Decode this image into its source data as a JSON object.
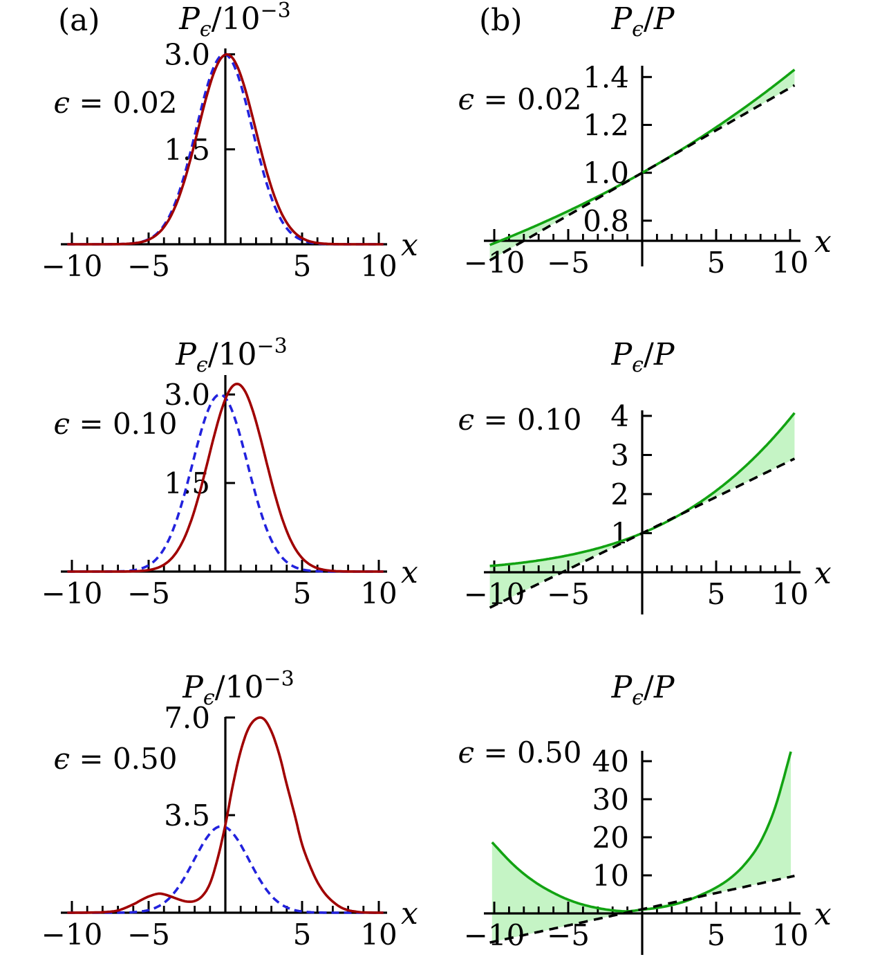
{
  "figure": {
    "panel_labels": {
      "a": "(a)",
      "b": "(b)"
    },
    "colors": {
      "red": "#a00000",
      "blue": "#2222dd",
      "green": "#12a312",
      "green_fill": "#c5f4c5",
      "axis": "#000000",
      "background": "#ffffff"
    }
  },
  "chart_data": [
    {
      "id": "a1",
      "type": "line",
      "row": 1,
      "column": "a",
      "title": "Pϵ/10⁻³",
      "title_parts": [
        {
          "t": "P",
          "s": "i"
        },
        {
          "t": "ϵ",
          "s": "sub"
        },
        {
          "t": "/10",
          "s": "u"
        },
        {
          "t": "−3",
          "s": "sup"
        }
      ],
      "epsilon_label": "ϵ = 0.02",
      "epsilon_parts": [
        {
          "t": "ϵ",
          "s": "i"
        },
        {
          "t": " = 0.02",
          "s": "u"
        }
      ],
      "xlabel": "x",
      "xlim": [
        -10.3,
        10.3
      ],
      "x_major_ticks": [
        -10,
        -5,
        5,
        10
      ],
      "x_major_tick_labels": [
        "−10",
        "−5",
        "5",
        "10"
      ],
      "x_minor_tick_step": 1,
      "x_axis_at_y": 0,
      "ylim": [
        0,
        3.3
      ],
      "y_ticks": [
        {
          "value": 1.5,
          "label": "1.5"
        },
        {
          "value": 3.0,
          "label": "3.0"
        }
      ],
      "series": [
        {
          "name": "P reference (blue dashed)",
          "color": "blue",
          "line": "dashed",
          "model": "gaussian",
          "gaussians": [
            {
              "A": 3.0,
              "mu": -0.07,
              "sigma": 1.83
            }
          ]
        },
        {
          "name": "Pϵ (red solid)",
          "color": "red",
          "line": "solid",
          "model": "gaussian",
          "gaussians": [
            {
              "A": 3.0,
              "mu": 0.1,
              "sigma": 1.87
            }
          ]
        }
      ]
    },
    {
      "id": "b1",
      "type": "line",
      "row": 1,
      "column": "b",
      "title": "Pϵ/P",
      "title_parts": [
        {
          "t": "P",
          "s": "i"
        },
        {
          "t": "ϵ",
          "s": "sub"
        },
        {
          "t": "/",
          "s": "u"
        },
        {
          "t": "P",
          "s": "i"
        }
      ],
      "epsilon_label": "ϵ = 0.02",
      "epsilon_parts": [
        {
          "t": "ϵ",
          "s": "i"
        },
        {
          "t": " = 0.02",
          "s": "u"
        }
      ],
      "xlabel": "x",
      "xlim": [
        -10.3,
        10.3
      ],
      "x_major_ticks": [
        -10,
        -5,
        5,
        10
      ],
      "x_major_tick_labels": [
        "−10",
        "−5",
        "5",
        "10"
      ],
      "x_minor_tick_step": 1,
      "x_axis_at_y": 0.716,
      "ylim": [
        0.716,
        1.45
      ],
      "y_ticks": [
        {
          "value": 0.8,
          "label": "0.8"
        },
        {
          "value": 1.0,
          "label": "1.0"
        },
        {
          "value": 1.2,
          "label": "1.2"
        },
        {
          "value": 1.4,
          "label": "1.4"
        }
      ],
      "fill_between": {
        "upper": 0,
        "lower": 1,
        "color": "green_fill"
      },
      "series": [
        {
          "name": "Pϵ/P exact (green solid)",
          "color": "green",
          "line": "solid",
          "model": "exp_quadratic",
          "params": {
            "a": 0,
            "b": 0.0348
          }
        },
        {
          "name": "linear approximation (black dashed)",
          "color": "axis",
          "line": "dashed",
          "model": "linear",
          "params": {
            "intercept": 1,
            "slope": 0.0355
          }
        }
      ]
    },
    {
      "id": "a2",
      "type": "line",
      "row": 2,
      "column": "a",
      "title": "Pϵ/10⁻³",
      "title_parts": [
        {
          "t": "P",
          "s": "i"
        },
        {
          "t": "ϵ",
          "s": "sub"
        },
        {
          "t": "/10",
          "s": "u"
        },
        {
          "t": "−3",
          "s": "sup"
        }
      ],
      "epsilon_label": "ϵ = 0.10",
      "epsilon_parts": [
        {
          "t": "ϵ",
          "s": "i"
        },
        {
          "t": " = 0.10",
          "s": "u"
        }
      ],
      "xlabel": "x",
      "xlim": [
        -10.3,
        10.3
      ],
      "x_major_ticks": [
        -10,
        -5,
        5,
        10
      ],
      "x_major_tick_labels": [
        "−10",
        "−5",
        "5",
        "10"
      ],
      "x_minor_tick_step": 1,
      "x_axis_at_y": 0,
      "ylim": [
        0,
        3.35
      ],
      "y_ticks": [
        {
          "value": 1.5,
          "label": "1.5"
        },
        {
          "value": 3.0,
          "label": "3.0"
        }
      ],
      "series": [
        {
          "name": "P reference (blue dashed)",
          "color": "blue",
          "line": "dashed",
          "model": "gaussian",
          "gaussians": [
            {
              "A": 3.0,
              "mu": -0.35,
              "sigma": 1.8
            }
          ]
        },
        {
          "name": "Pϵ (red solid)",
          "color": "red",
          "line": "solid",
          "model": "gaussian",
          "gaussians": [
            {
              "A": 3.18,
              "mu": 0.76,
              "sigma": 1.85
            }
          ]
        }
      ]
    },
    {
      "id": "b2",
      "type": "line",
      "row": 2,
      "column": "b",
      "title": "Pϵ/P",
      "title_parts": [
        {
          "t": "P",
          "s": "i"
        },
        {
          "t": "ϵ",
          "s": "sub"
        },
        {
          "t": "/",
          "s": "u"
        },
        {
          "t": "P",
          "s": "i"
        }
      ],
      "epsilon_label": "ϵ = 0.10",
      "epsilon_parts": [
        {
          "t": "ϵ",
          "s": "i"
        },
        {
          "t": " = 0.10",
          "s": "u"
        }
      ],
      "xlabel": "x",
      "xlim": [
        -10.3,
        10.3
      ],
      "x_major_ticks": [
        -10,
        -5,
        5,
        10
      ],
      "x_major_tick_labels": [
        "−10",
        "−5",
        "5",
        "10"
      ],
      "x_minor_tick_step": 1,
      "x_axis_at_y": 0,
      "ylim": [
        -1,
        4.15
      ],
      "y_ticks": [
        {
          "value": 1,
          "label": "1"
        },
        {
          "value": 2,
          "label": "2"
        },
        {
          "value": 3,
          "label": "3"
        },
        {
          "value": 4,
          "label": "4"
        }
      ],
      "fill_between": {
        "upper": 0,
        "lower": 1,
        "color": "green_fill"
      },
      "series": [
        {
          "name": "Pϵ/P exact (green solid)",
          "color": "green",
          "line": "solid",
          "model": "exp_quadratic",
          "params": {
            "a": -0.002,
            "b": 0.157
          }
        },
        {
          "name": "linear approximation (black dashed)",
          "color": "axis",
          "line": "dashed",
          "model": "linear",
          "params": {
            "intercept": 1,
            "slope": 0.185
          }
        }
      ]
    },
    {
      "id": "a3",
      "type": "line",
      "row": 3,
      "column": "a",
      "title": "Pϵ/10⁻³",
      "title_parts": [
        {
          "t": "P",
          "s": "i"
        },
        {
          "t": "ϵ",
          "s": "sub"
        },
        {
          "t": "/10",
          "s": "u"
        },
        {
          "t": "−3",
          "s": "sup"
        }
      ],
      "epsilon_label": "ϵ = 0.50",
      "epsilon_parts": [
        {
          "t": "ϵ",
          "s": "i"
        },
        {
          "t": " = 0.50",
          "s": "u"
        }
      ],
      "xlabel": "x",
      "xlim": [
        -10.3,
        10.3
      ],
      "x_major_ticks": [
        -10,
        -5,
        5,
        10
      ],
      "x_major_tick_labels": [
        "−10",
        "−5",
        "5",
        "10"
      ],
      "x_minor_tick_step": 1,
      "x_axis_at_y": 0,
      "ylim": [
        0,
        7.1
      ],
      "y_ticks": [
        {
          "value": 3.5,
          "label": "3.5"
        },
        {
          "value": 7.0,
          "label": "7.0"
        }
      ],
      "series": [
        {
          "name": "P reference (blue dashed)",
          "color": "blue",
          "line": "dashed",
          "model": "gaussian",
          "gaussians": [
            {
              "A": 3.1,
              "mu": -0.25,
              "sigma": 1.8
            }
          ]
        },
        {
          "name": "Pϵ bimodal (red solid)",
          "color": "red",
          "line": "solid",
          "model": "points",
          "points": [
            [
              -10.3,
              0
            ],
            [
              -9,
              0.005
            ],
            [
              -8,
              0.02
            ],
            [
              -7,
              0.08
            ],
            [
              -6,
              0.3
            ],
            [
              -5.5,
              0.45
            ],
            [
              -5,
              0.58
            ],
            [
              -4.4,
              0.68
            ],
            [
              -4,
              0.66
            ],
            [
              -3.5,
              0.57
            ],
            [
              -3,
              0.47
            ],
            [
              -2.5,
              0.4
            ],
            [
              -2,
              0.42
            ],
            [
              -1.5,
              0.6
            ],
            [
              -1,
              1.05
            ],
            [
              -0.5,
              1.95
            ],
            [
              0,
              3.15
            ],
            [
              0.5,
              4.6
            ],
            [
              1,
              5.8
            ],
            [
              1.5,
              6.6
            ],
            [
              2,
              6.95
            ],
            [
              2.5,
              6.95
            ],
            [
              3,
              6.5
            ],
            [
              3.5,
              5.7
            ],
            [
              4,
              4.6
            ],
            [
              4.5,
              3.55
            ],
            [
              5,
              2.45
            ],
            [
              5.5,
              1.7
            ],
            [
              6,
              1.1
            ],
            [
              6.5,
              0.68
            ],
            [
              7,
              0.4
            ],
            [
              7.5,
              0.2
            ],
            [
              8,
              0.09
            ],
            [
              8.5,
              0.04
            ],
            [
              9,
              0.01
            ],
            [
              10.3,
              0
            ]
          ]
        }
      ]
    },
    {
      "id": "b3",
      "type": "line",
      "row": 3,
      "column": "b",
      "title": "Pϵ/P",
      "title_parts": [
        {
          "t": "P",
          "s": "i"
        },
        {
          "t": "ϵ",
          "s": "sub"
        },
        {
          "t": "/",
          "s": "u"
        },
        {
          "t": "P",
          "s": "i"
        }
      ],
      "epsilon_label": "ϵ = 0.50",
      "epsilon_parts": [
        {
          "t": "ϵ",
          "s": "i"
        },
        {
          "t": " = 0.50",
          "s": "u"
        }
      ],
      "xlabel": "x",
      "xlim": [
        -10.3,
        10.3
      ],
      "x_major_ticks": [
        -10,
        -5,
        5,
        10
      ],
      "x_major_tick_labels": [
        "−10",
        "−5",
        "5",
        "10"
      ],
      "x_minor_tick_step": 1,
      "x_axis_at_y": 0,
      "ylim": [
        -10,
        43
      ],
      "y_ticks": [
        {
          "value": 10,
          "label": "10"
        },
        {
          "value": 20,
          "label": "20"
        },
        {
          "value": 30,
          "label": "30"
        },
        {
          "value": 40,
          "label": "40"
        }
      ],
      "fill_between": {
        "upper": 0,
        "lower": 1,
        "color": "green_fill"
      },
      "series": [
        {
          "name": "Pϵ/P exact (green solid)",
          "color": "green",
          "line": "solid",
          "model": "points",
          "points": [
            [
              -10.15,
              18.7
            ],
            [
              -9,
              13.9
            ],
            [
              -8,
              10.4
            ],
            [
              -7,
              7.6
            ],
            [
              -6,
              5.4
            ],
            [
              -5,
              3.6
            ],
            [
              -4,
              2.3
            ],
            [
              -3,
              1.4
            ],
            [
              -2,
              0.8
            ],
            [
              -1,
              0.55
            ],
            [
              0,
              1.0
            ],
            [
              1,
              1.45
            ],
            [
              2,
              2.2
            ],
            [
              3,
              3.3
            ],
            [
              4,
              4.9
            ],
            [
              5,
              6.8
            ],
            [
              6,
              9.4
            ],
            [
              7,
              13.2
            ],
            [
              8,
              18.8
            ],
            [
              9,
              28
            ],
            [
              10.05,
              42.5
            ]
          ]
        },
        {
          "name": "linear approximation (black dashed)",
          "color": "axis",
          "line": "dashed",
          "model": "linear",
          "params": {
            "intercept": 1.1,
            "slope": 0.85
          }
        }
      ]
    }
  ]
}
